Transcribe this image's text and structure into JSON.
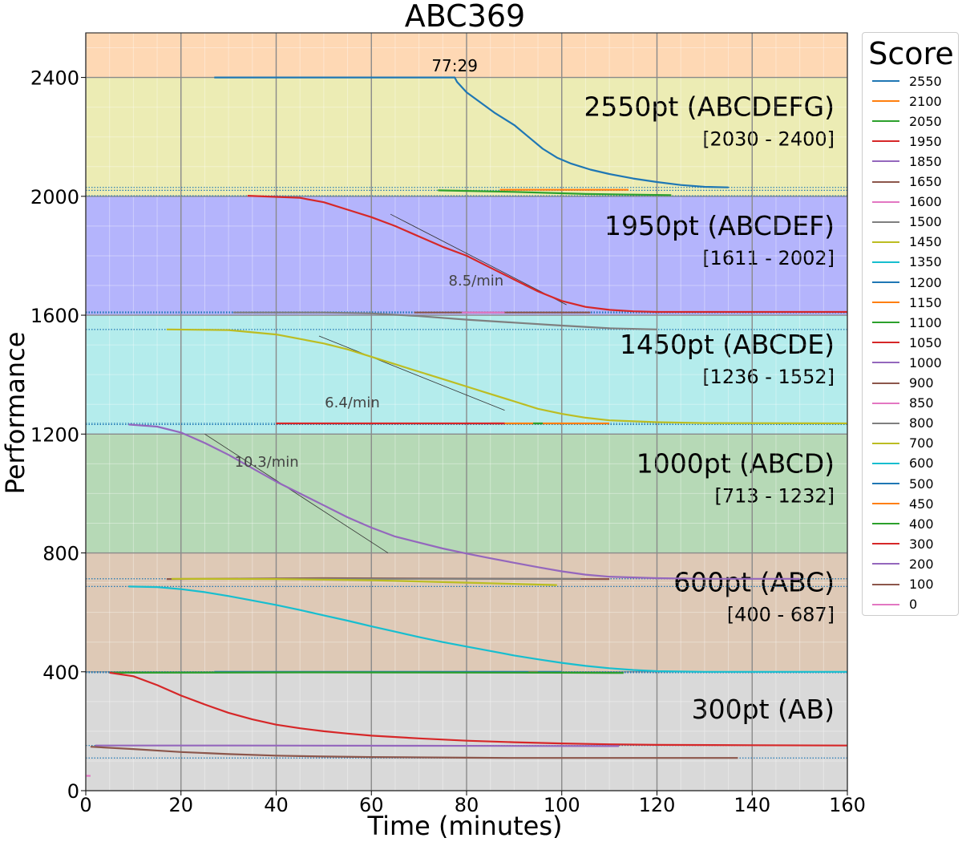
{
  "chart_data": {
    "type": "line",
    "title": "ABC369",
    "xlabel": "Time (minutes)",
    "ylabel": "Performance",
    "xlim": [
      0,
      160
    ],
    "ylim": [
      0,
      2550
    ],
    "xticks": [
      0,
      20,
      40,
      60,
      80,
      100,
      120,
      140,
      160
    ],
    "yticks": [
      0,
      400,
      800,
      1200,
      1600,
      2000,
      2400
    ],
    "grid": true,
    "legend": {
      "title": "Score",
      "placement": "outside-right"
    },
    "bands": [
      {
        "from": 0,
        "to": 400,
        "color": "#d9d9d9",
        "label": "300pt (AB)",
        "range": ""
      },
      {
        "from": 400,
        "to": 800,
        "color": "#dec9b6",
        "label": "600pt (ABC)",
        "range": "[400 - 687]"
      },
      {
        "from": 800,
        "to": 1200,
        "color": "#b6d9b6",
        "label": "1000pt (ABCD)",
        "range": "[713 - 1232]"
      },
      {
        "from": 1200,
        "to": 1600,
        "color": "#b4ecec",
        "label": "1450pt (ABCDE)",
        "range": "[1236 - 1552]"
      },
      {
        "from": 1600,
        "to": 2000,
        "color": "#b4b4fc",
        "label": "1950pt (ABCDEF)",
        "range": "[1611 - 2002]"
      },
      {
        "from": 2000,
        "to": 2400,
        "color": "#ececb4",
        "label": "2550pt (ABCDEFG)",
        "range": "[2030 - 2400]"
      },
      {
        "from": 2400,
        "to": 2550,
        "color": "#fed8b4",
        "label": "",
        "range": ""
      }
    ],
    "dotted_lines": [
      {
        "y": 2030,
        "color": "#1f77b4"
      },
      {
        "y": 2020,
        "color": "#1f77b4"
      },
      {
        "y": 2002,
        "color": "#1f77b4"
      },
      {
        "y": 1611,
        "color": "#1f77b4"
      },
      {
        "y": 1608,
        "color": "#1f77b4"
      },
      {
        "y": 1552,
        "color": "#1f77b4"
      },
      {
        "y": 1236,
        "color": "#1f77b4"
      },
      {
        "y": 1232,
        "color": "#1f77b4"
      },
      {
        "y": 713,
        "color": "#1f77b4"
      },
      {
        "y": 687,
        "color": "#1f77b4"
      },
      {
        "y": 400,
        "color": "#1f77b4"
      },
      {
        "y": 397,
        "color": "#1f77b4"
      },
      {
        "y": 152,
        "color": "#1f77b4"
      },
      {
        "y": 110,
        "color": "#1f77b4"
      }
    ],
    "annotations": [
      {
        "text": "77:29",
        "x": 77.5,
        "y": 2420
      },
      {
        "text": "8.5/min",
        "x": 82,
        "y": 1700
      },
      {
        "text": "6.4/min",
        "x": 56,
        "y": 1290
      },
      {
        "text": "10.3/min",
        "x": 38,
        "y": 1090
      }
    ],
    "slope_lines": [
      {
        "x": [
          64,
          101
        ],
        "y": [
          1940,
          1635
        ]
      },
      {
        "x": [
          49,
          88
        ],
        "y": [
          1530,
          1280
        ]
      },
      {
        "x": [
          25,
          63.5
        ],
        "y": [
          1200,
          800
        ]
      }
    ],
    "series": [
      {
        "name": "2550",
        "color": "#1f77b4",
        "x": [
          27,
          77.5,
          78,
          80,
          83,
          86,
          90,
          93,
          96,
          99,
          102,
          106,
          110,
          115,
          120,
          125,
          130,
          135
        ],
        "y": [
          2400,
          2400,
          2385,
          2350,
          2315,
          2280,
          2240,
          2200,
          2160,
          2130,
          2110,
          2090,
          2075,
          2060,
          2048,
          2038,
          2032,
          2030
        ]
      },
      {
        "name": "2100",
        "color": "#ff7f0e",
        "x": [
          87,
          114
        ],
        "y": [
          2022,
          2022
        ]
      },
      {
        "name": "2050",
        "color": "#2ca02c",
        "x": [
          74,
          90,
          105,
          123
        ],
        "y": [
          2020,
          2015,
          2008,
          2004
        ]
      },
      {
        "name": "1950",
        "color": "#d62728",
        "x": [
          34,
          45,
          50,
          55,
          60,
          65,
          70,
          75,
          80,
          85,
          90,
          95,
          100,
          105,
          110,
          115,
          120,
          130,
          160
        ],
        "y": [
          2002,
          1995,
          1980,
          1955,
          1930,
          1900,
          1865,
          1830,
          1800,
          1760,
          1720,
          1680,
          1648,
          1628,
          1618,
          1613,
          1611,
          1611,
          1611
        ]
      },
      {
        "name": "1850",
        "color": "#9467bd",
        "x": [],
        "y": []
      },
      {
        "name": "1650",
        "color": "#8c564b",
        "x": [
          69,
          106
        ],
        "y": [
          1609,
          1609
        ]
      },
      {
        "name": "1600",
        "color": "#e377c2",
        "x": [
          79,
          88
        ],
        "y": [
          1609,
          1609
        ]
      },
      {
        "name": "1500",
        "color": "#7f7f7f",
        "x": [
          31,
          50,
          60,
          70,
          80,
          90,
          100,
          110,
          120
        ],
        "y": [
          1609,
          1609,
          1606,
          1597,
          1585,
          1575,
          1565,
          1556,
          1552
        ]
      },
      {
        "name": "1450",
        "color": "#bcbd22",
        "x": [
          17,
          30,
          40,
          50,
          55,
          60,
          65,
          70,
          75,
          80,
          85,
          90,
          95,
          100,
          105,
          110,
          120,
          130,
          160
        ],
        "y": [
          1552,
          1550,
          1535,
          1505,
          1485,
          1460,
          1435,
          1410,
          1385,
          1360,
          1335,
          1310,
          1285,
          1268,
          1255,
          1246,
          1240,
          1237,
          1236
        ]
      },
      {
        "name": "1350",
        "color": "#17becf",
        "x": [],
        "y": []
      },
      {
        "name": "1200",
        "color": "#1f77b4",
        "x": [],
        "y": []
      },
      {
        "name": "1150",
        "color": "#ff7f0e",
        "x": [
          85,
          110
        ],
        "y": [
          1236,
          1236
        ]
      },
      {
        "name": "1100",
        "color": "#2ca02c",
        "x": [
          94,
          96
        ],
        "y": [
          1236,
          1236
        ]
      },
      {
        "name": "1050",
        "color": "#d62728",
        "x": [
          40,
          88
        ],
        "y": [
          1236,
          1236
        ]
      },
      {
        "name": "1000",
        "color": "#9467bd",
        "x": [
          9,
          15,
          20,
          25,
          30,
          35,
          40,
          45,
          50,
          55,
          60,
          65,
          70,
          75,
          80,
          85,
          90,
          95,
          100,
          105,
          110,
          120,
          130,
          150
        ],
        "y": [
          1232,
          1225,
          1205,
          1170,
          1130,
          1085,
          1040,
          1000,
          960,
          920,
          885,
          855,
          835,
          815,
          798,
          782,
          767,
          752,
          738,
          727,
          720,
          715,
          713,
          713
        ]
      },
      {
        "name": "900",
        "color": "#8c564b",
        "x": [
          17,
          50,
          110
        ],
        "y": [
          712,
          715,
          712
        ]
      },
      {
        "name": "850",
        "color": "#e377c2",
        "x": [],
        "y": []
      },
      {
        "name": "800",
        "color": "#7f7f7f",
        "x": [
          32,
          60,
          104
        ],
        "y": [
          713,
          713,
          713
        ]
      },
      {
        "name": "700",
        "color": "#bcbd22",
        "x": [
          18,
          40,
          60,
          80,
          99
        ],
        "y": [
          713,
          712,
          708,
          700,
          692
        ]
      },
      {
        "name": "600",
        "color": "#17becf",
        "x": [
          9,
          15,
          20,
          25,
          30,
          35,
          40,
          45,
          50,
          55,
          60,
          65,
          70,
          75,
          80,
          85,
          90,
          95,
          100,
          105,
          110,
          115,
          120,
          130,
          140,
          160
        ],
        "y": [
          687,
          685,
          678,
          668,
          655,
          640,
          625,
          608,
          590,
          572,
          553,
          535,
          517,
          500,
          485,
          470,
          455,
          442,
          430,
          420,
          412,
          406,
          402,
          400,
          400,
          400
        ]
      },
      {
        "name": "500",
        "color": "#1f77b4",
        "x": [
          27,
          100
        ],
        "y": [
          400,
          400
        ]
      },
      {
        "name": "450",
        "color": "#ff7f0e",
        "x": [
          93,
          95
        ],
        "y": [
          398,
          398
        ]
      },
      {
        "name": "400",
        "color": "#2ca02c",
        "x": [
          5,
          50,
          100,
          113
        ],
        "y": [
          397,
          398,
          397,
          396
        ]
      },
      {
        "name": "300",
        "color": "#d62728",
        "x": [
          5,
          10,
          15,
          20,
          25,
          30,
          35,
          40,
          45,
          50,
          55,
          60,
          70,
          80,
          90,
          100,
          110,
          120,
          140,
          160
        ],
        "y": [
          397,
          385,
          355,
          320,
          290,
          262,
          240,
          222,
          210,
          200,
          192,
          185,
          176,
          168,
          163,
          159,
          156,
          154,
          153,
          152
        ]
      },
      {
        "name": "200",
        "color": "#9467bd",
        "x": [
          2,
          30,
          70,
          112
        ],
        "y": [
          152,
          152,
          151,
          150
        ]
      },
      {
        "name": "100",
        "color": "#8c564b",
        "x": [
          1,
          10,
          20,
          30,
          40,
          50,
          60,
          70,
          80,
          90,
          100,
          110,
          120,
          130,
          137
        ],
        "y": [
          148,
          140,
          130,
          123,
          118,
          115,
          113,
          112,
          111,
          110,
          110,
          110,
          110,
          110,
          110
        ]
      },
      {
        "name": "0",
        "color": "#e377c2",
        "x": [
          0,
          1
        ],
        "y": [
          50,
          50
        ]
      }
    ]
  }
}
